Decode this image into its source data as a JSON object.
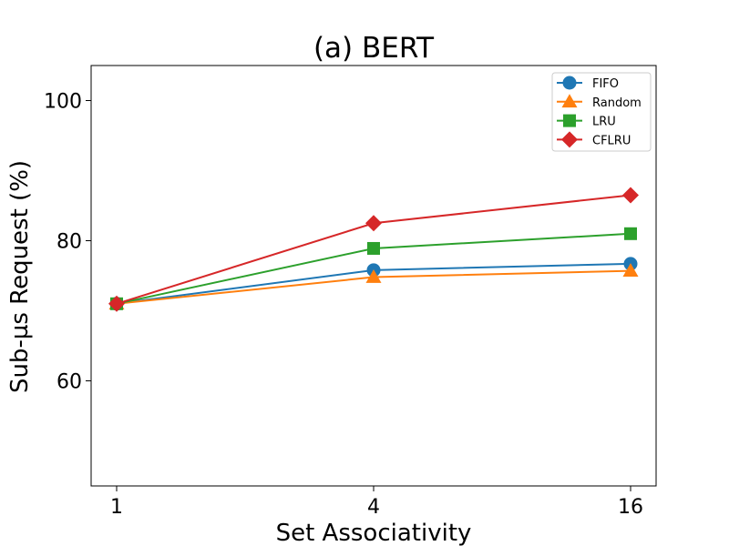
{
  "chart_data": {
    "type": "line",
    "title": "(a) BERT",
    "xlabel": "Set Associativity",
    "ylabel": "Sub-µs Request (%)",
    "categories": [
      "1",
      "4",
      "16"
    ],
    "xscale": "log2-categorical",
    "ylim": [
      45,
      105
    ],
    "yticks": [
      60,
      80,
      100
    ],
    "grid": false,
    "legend_position": "top-right",
    "series": [
      {
        "name": "FIFO",
        "values": [
          71.0,
          75.8,
          76.7
        ],
        "color": "#1f77b4",
        "marker": "circle"
      },
      {
        "name": "Random",
        "values": [
          71.0,
          74.8,
          75.7
        ],
        "color": "#ff7f0e",
        "marker": "triangle"
      },
      {
        "name": "LRU",
        "values": [
          71.0,
          78.9,
          81.0
        ],
        "color": "#2ca02c",
        "marker": "square"
      },
      {
        "name": "CFLRU",
        "values": [
          71.0,
          82.5,
          86.5
        ],
        "color": "#d62728",
        "marker": "diamond"
      }
    ]
  }
}
